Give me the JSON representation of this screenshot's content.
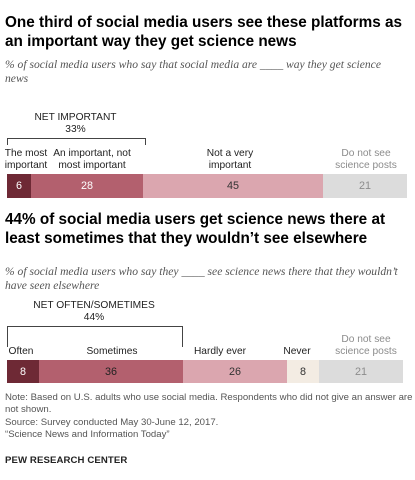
{
  "chart_data": [
    {
      "type": "bar",
      "orientation": "horizontal-stacked",
      "title": "One third of social media users see these platforms as an important way they get science news",
      "subtitle": "% of social media users who say that social media are ____ way they get science news",
      "group_label": "NET IMPORTANT",
      "group_value": "33%",
      "series": [
        {
          "name": "The most important",
          "label_lines": [
            "The most",
            "important"
          ],
          "value": 6,
          "color": "#6e2935",
          "text_color": "#ffffff"
        },
        {
          "name": "An important, not most important",
          "label_lines": [
            "An important, not",
            "most important"
          ],
          "value": 28,
          "color": "#b3606e",
          "text_color": "#ffffff"
        },
        {
          "name": "Not a very important",
          "label_lines": [
            "Not a very",
            "important"
          ],
          "value": 45,
          "color": "#dba6af",
          "text_color": "#333333"
        },
        {
          "name": "Do not see science posts",
          "label_lines": [
            "Do not see",
            "science posts"
          ],
          "value": 21,
          "color": "#dcdcdc",
          "text_color": "#8c8c8c"
        }
      ]
    },
    {
      "type": "bar",
      "orientation": "horizontal-stacked",
      "title": "44% of social media users get science news there at least sometimes that they wouldn’t see elsewhere",
      "subtitle": "% of social media users who say they ____ see science news there that they wouldn’t have seen elsewhere",
      "group_label": "NET OFTEN/SOMETIMES",
      "group_value": "44%",
      "series": [
        {
          "name": "Often",
          "label_lines": [
            "Often"
          ],
          "value": 8,
          "color": "#6e2935",
          "text_color": "#ffffff"
        },
        {
          "name": "Sometimes",
          "label_lines": [
            "Sometimes"
          ],
          "value": 36,
          "color": "#b3606e",
          "text_color": "#222222"
        },
        {
          "name": "Hardly ever",
          "label_lines": [
            "Hardly ever"
          ],
          "value": 26,
          "color": "#dba6af",
          "text_color": "#333333"
        },
        {
          "name": "Never",
          "label_lines": [
            "Never"
          ],
          "value": 8,
          "color": "#f3ece3",
          "text_color": "#333333"
        },
        {
          "name": "Do not see science posts",
          "label_lines": [
            "Do not see",
            "science posts"
          ],
          "value": 21,
          "color": "#dcdcdc",
          "text_color": "#8c8c8c"
        }
      ]
    }
  ],
  "notes": [
    "Note: Based on U.S. adults who use social media. Respondents who did not give an answer are not shown.",
    "Source: Survey conducted May 30-June 12, 2017.",
    "“Science News and Information Today”"
  ],
  "brand": "PEW RESEARCH CENTER"
}
